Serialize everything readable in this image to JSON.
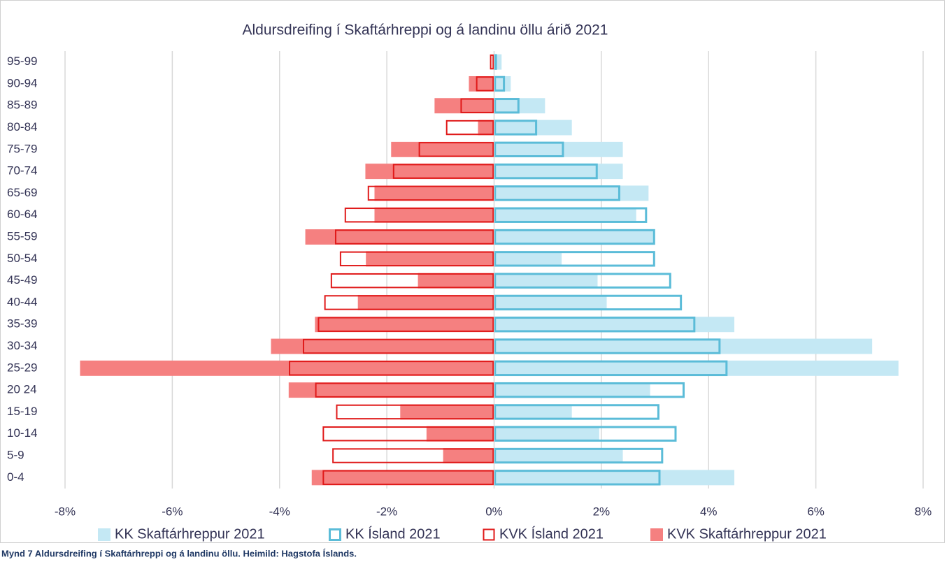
{
  "chart_data": {
    "type": "bar",
    "orientation": "horizontal",
    "title": "Aldursdreifing í Skaftárhreppi og á landinu öllu árið 2021",
    "categories": [
      "0-4",
      "5-9",
      "10-14",
      "15-19",
      "20 24",
      "25-29",
      "30-34",
      "35-39",
      "40-44",
      "45-49",
      "50-54 ",
      "55-59",
      "60-64",
      "65-69",
      "70-74",
      "75-79",
      "80-84",
      "85-89",
      "90-94",
      "95-99"
    ],
    "series": [
      {
        "name": "KK Skaftárhreppur 2021",
        "color": "#c4e8f4",
        "style": "fill",
        "values": [
          4.48,
          2.4,
          1.96,
          1.45,
          2.91,
          7.54,
          7.05,
          4.48,
          2.1,
          1.93,
          1.26,
          2.97,
          2.65,
          2.88,
          2.4,
          2.4,
          1.45,
          0.95,
          0.31,
          0.14
        ]
      },
      {
        "name": "KK Ísland 2021",
        "color": "#5bbcd8",
        "style": "outline",
        "values": [
          3.1,
          3.15,
          3.4,
          3.08,
          3.55,
          4.35,
          4.22,
          3.75,
          3.5,
          3.3,
          3.0,
          3.0,
          2.85,
          2.35,
          1.93,
          1.3,
          0.8,
          0.47,
          0.2,
          0.05
        ]
      },
      {
        "name": "KVK Ísland 2021",
        "color": "#e01a1a",
        "style": "outline",
        "values": [
          -3.2,
          -3.02,
          -3.2,
          -2.95,
          -3.34,
          -3.83,
          -3.57,
          -3.29,
          -3.17,
          -3.05,
          -2.88,
          -2.97,
          -2.79,
          -2.36,
          -1.89,
          -1.41,
          -0.9,
          -0.63,
          -0.34,
          -0.08
        ]
      },
      {
        "name": "KVK Skaftárhreppur 2021",
        "color": "#f58080",
        "style": "fill",
        "values": [
          -3.4,
          -0.95,
          -1.26,
          -1.75,
          -3.83,
          -7.72,
          -4.16,
          -3.34,
          -2.54,
          -1.42,
          -2.39,
          -3.52,
          -2.23,
          -2.23,
          -2.4,
          -1.92,
          -0.3,
          -1.11,
          -0.47,
          0
        ]
      }
    ],
    "xlim": [
      -8,
      8
    ],
    "xticks": [
      {
        "value": -8,
        "label": "-8%"
      },
      {
        "value": -6,
        "label": "-6%"
      },
      {
        "value": -4,
        "label": "-4%"
      },
      {
        "value": -2,
        "label": "-2%"
      },
      {
        "value": 0,
        "label": "0%"
      },
      {
        "value": 2,
        "label": "2%"
      },
      {
        "value": 4,
        "label": "4%"
      },
      {
        "value": 6,
        "label": "6%"
      },
      {
        "value": 8,
        "label": "8%"
      }
    ],
    "grid": true,
    "legend": "bottom",
    "caption": "Mynd 7 Aldursdreifing í Skaftárhreppi og á landinu öllu. Heimild: Hagstofa Íslands."
  }
}
